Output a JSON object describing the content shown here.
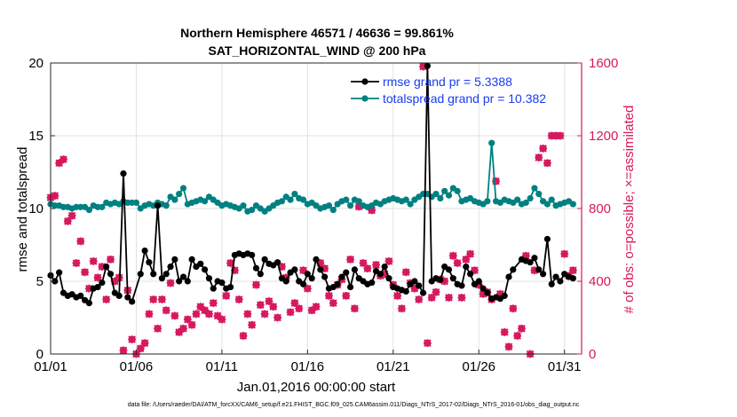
{
  "chart_data": {
    "type": "line",
    "title": "Northern Hemisphere 46571 / 46636 = 99.861%",
    "subtitle": "SAT_HORIZONTAL_WIND @ 200 hPa",
    "xlabel": "Jan.01,2016 00:00:00 start",
    "ylabel_left": "rmse and totalspread",
    "ylabel_right": "# of obs: o=possible; ×=assimilated",
    "footnote": "data file: /Users/raeder/DAI/ATM_forcXX/CAM6_setup/f.e21.FHIST_BGC.f09_025.CAM6assim.011/Diags_NTrS_2017-02/Diags_NTrS_2016-01/obs_diag_output.nc",
    "xlim": [
      1,
      32
    ],
    "ylim_left": [
      0,
      20
    ],
    "ylim_right": [
      0,
      1600
    ],
    "x_ticks": [
      1,
      6,
      11,
      16,
      21,
      26,
      31
    ],
    "x_tick_labels": [
      "01/01",
      "01/06",
      "01/11",
      "01/16",
      "01/21",
      "01/26",
      "01/31"
    ],
    "y_left_ticks": [
      "0",
      "5",
      "10",
      "15",
      "20"
    ],
    "y_right_ticks": [
      "0",
      "400",
      "800",
      "1200",
      "1600"
    ],
    "grid": true,
    "legend_position": "top-right",
    "colors": {
      "rmse": "#000000",
      "totalspread": "#008080",
      "obs": "#d6195e",
      "legend_text": "#1a3cf0",
      "right_axis": "#d6195e"
    },
    "series": [
      {
        "name": "rmse grand pr = 5.3388",
        "axis": "left",
        "x": [
          1.0,
          1.25,
          1.5,
          1.75,
          2.0,
          2.25,
          2.5,
          2.75,
          3.0,
          3.25,
          3.5,
          3.75,
          4.0,
          4.25,
          4.5,
          4.75,
          5.0,
          5.25,
          5.5,
          5.75,
          6.25,
          6.5,
          6.75,
          7.0,
          7.25,
          7.5,
          7.75,
          8.0,
          8.25,
          8.5,
          8.75,
          9.0,
          9.25,
          9.5,
          9.75,
          10.0,
          10.25,
          10.5,
          10.75,
          11.0,
          11.25,
          11.5,
          11.75,
          12.0,
          12.25,
          12.5,
          12.75,
          13.0,
          13.25,
          13.5,
          13.75,
          14.0,
          14.25,
          14.5,
          14.75,
          15.0,
          15.25,
          15.5,
          15.75,
          16.0,
          16.25,
          16.5,
          16.75,
          17.0,
          17.25,
          17.5,
          17.75,
          18.0,
          18.25,
          18.5,
          18.75,
          19.0,
          19.25,
          19.5,
          19.75,
          20.0,
          20.25,
          20.5,
          20.75,
          21.0,
          21.25,
          21.5,
          21.75,
          22.0,
          22.25,
          22.5,
          22.75,
          23.0,
          23.25,
          23.5,
          23.75,
          24.0,
          24.25,
          24.5,
          24.75,
          25.0,
          25.25,
          25.5,
          25.75,
          26.0,
          26.25,
          26.5,
          26.75,
          27.0,
          27.25,
          27.5,
          27.75,
          28.0,
          28.5,
          28.75,
          29.0,
          29.25,
          29.5,
          29.75,
          30.0,
          30.25,
          30.5,
          30.75,
          31.0,
          31.25,
          31.5
        ],
        "y": [
          5.4,
          5.0,
          5.6,
          4.2,
          4.0,
          4.1,
          3.9,
          4.0,
          3.7,
          3.5,
          4.5,
          4.6,
          4.9,
          6.0,
          5.5,
          4.2,
          4.0,
          12.4,
          3.9,
          3.6,
          5.5,
          7.1,
          6.3,
          5.5,
          10.2,
          5.2,
          5.5,
          6.0,
          6.5,
          5.0,
          5.3,
          5.0,
          6.5,
          6.0,
          6.2,
          5.8,
          5.2,
          4.5,
          5.0,
          4.9,
          4.5,
          4.6,
          6.8,
          6.9,
          6.8,
          6.9,
          6.8,
          5.9,
          5.5,
          6.5,
          6.2,
          6.1,
          6.3,
          5.2,
          5.0,
          5.6,
          5.8,
          5.0,
          4.8,
          5.5,
          5.2,
          6.5,
          5.8,
          5.3,
          4.5,
          4.6,
          4.8,
          5.3,
          5.6,
          4.6,
          5.8,
          5.2,
          5.0,
          4.8,
          4.9,
          5.7,
          5.5,
          6.0,
          5.2,
          4.6,
          4.5,
          4.4,
          4.3,
          4.8,
          5.0,
          4.7,
          4.2,
          19.8,
          5.0,
          5.2,
          5.1,
          6.0,
          5.8,
          5.2,
          4.8,
          4.7,
          6.0,
          5.5,
          4.8,
          5.0,
          4.5,
          4.2,
          3.8,
          3.9,
          3.8,
          4.0,
          5.3,
          5.8,
          6.5,
          6.4,
          6.3,
          6.6,
          5.8,
          5.5,
          7.9,
          4.8,
          5.3,
          5.0,
          5.5,
          5.3,
          5.2
        ]
      },
      {
        "name": "totalspread grand pr = 10.382",
        "axis": "left",
        "x": [
          1.0,
          1.25,
          1.5,
          1.75,
          2.0,
          2.25,
          2.5,
          2.75,
          3.0,
          3.25,
          3.5,
          3.75,
          4.0,
          4.25,
          4.5,
          4.75,
          5.0,
          5.25,
          5.5,
          5.75,
          6.0,
          6.25,
          6.5,
          6.75,
          7.0,
          7.25,
          7.5,
          7.75,
          8.0,
          8.25,
          8.5,
          8.75,
          9.0,
          9.25,
          9.5,
          9.75,
          10.0,
          10.25,
          10.5,
          10.75,
          11.0,
          11.25,
          11.5,
          11.75,
          12.0,
          12.25,
          12.5,
          12.75,
          13.0,
          13.25,
          13.5,
          13.75,
          14.0,
          14.25,
          14.5,
          14.75,
          15.0,
          15.25,
          15.5,
          15.75,
          16.0,
          16.25,
          16.5,
          16.75,
          17.0,
          17.25,
          17.5,
          17.75,
          18.0,
          18.25,
          18.5,
          18.75,
          19.0,
          19.25,
          19.5,
          19.75,
          20.0,
          20.25,
          20.5,
          20.75,
          21.0,
          21.25,
          21.5,
          21.75,
          22.0,
          22.25,
          22.5,
          22.75,
          23.0,
          23.25,
          23.5,
          23.75,
          24.0,
          24.25,
          24.5,
          24.75,
          25.0,
          25.25,
          25.5,
          25.75,
          26.0,
          26.25,
          26.5,
          26.75,
          27.0,
          27.25,
          27.5,
          27.75,
          28.0,
          28.25,
          28.5,
          28.75,
          29.0,
          29.25,
          29.5,
          29.75,
          30.0,
          30.25,
          30.5,
          30.75,
          31.0,
          31.25,
          31.5
        ],
        "y": [
          10.3,
          10.2,
          10.2,
          10.1,
          10.1,
          10.0,
          10.1,
          10.1,
          10.1,
          9.9,
          10.2,
          10.1,
          10.1,
          10.4,
          10.3,
          10.4,
          10.3,
          10.5,
          10.4,
          10.4,
          10.4,
          10.0,
          10.2,
          10.3,
          10.2,
          10.4,
          10.3,
          10.2,
          10.8,
          10.6,
          11.0,
          11.4,
          10.3,
          10.4,
          10.5,
          10.6,
          10.5,
          10.8,
          10.6,
          10.4,
          10.2,
          10.3,
          10.2,
          10.1,
          10.0,
          10.2,
          9.8,
          9.9,
          10.2,
          10.0,
          9.8,
          10.0,
          10.2,
          10.4,
          10.5,
          10.8,
          10.6,
          11.0,
          10.7,
          10.6,
          10.3,
          10.4,
          10.2,
          10.0,
          10.1,
          10.2,
          9.9,
          10.3,
          10.5,
          10.6,
          10.2,
          10.6,
          10.5,
          10.2,
          10.1,
          10.2,
          10.4,
          10.3,
          10.5,
          10.6,
          10.7,
          10.6,
          10.5,
          10.6,
          10.3,
          10.6,
          10.8,
          11.0,
          11.0,
          10.8,
          11.0,
          10.7,
          11.2,
          10.9,
          11.4,
          11.2,
          10.5,
          10.6,
          10.7,
          10.5,
          10.4,
          10.3,
          10.5,
          14.5,
          10.5,
          10.4,
          10.6,
          10.5,
          10.4,
          10.6,
          10.3,
          10.4,
          10.7,
          11.4,
          11.0,
          10.5,
          10.3,
          10.6,
          10.2,
          10.3,
          10.4,
          10.5,
          10.3
        ]
      },
      {
        "name": "obs possible",
        "axis": "right",
        "marker": "o",
        "x": [
          1.0,
          1.25,
          1.5,
          1.75,
          2.0,
          2.25,
          2.5,
          2.75,
          3.0,
          3.25,
          3.5,
          3.75,
          4.0,
          4.25,
          4.5,
          4.75,
          5.0,
          5.25,
          5.5,
          5.75,
          6.0,
          6.25,
          6.5,
          6.75,
          7.0,
          7.25,
          7.5,
          7.75,
          8.0,
          8.25,
          8.5,
          8.75,
          9.0,
          9.25,
          9.5,
          9.75,
          10.0,
          10.25,
          10.5,
          10.75,
          11.0,
          11.25,
          11.5,
          11.75,
          12.0,
          12.25,
          12.5,
          12.75,
          13.0,
          13.25,
          13.5,
          13.75,
          14.0,
          14.25,
          14.5,
          14.75,
          15.0,
          15.25,
          15.5,
          15.75,
          16.0,
          16.25,
          16.5,
          16.75,
          17.0,
          17.25,
          17.5,
          17.75,
          18.0,
          18.25,
          18.5,
          18.75,
          19.0,
          19.25,
          19.5,
          19.75,
          20.0,
          20.25,
          20.5,
          20.75,
          21.0,
          21.25,
          21.5,
          21.75,
          22.0,
          22.25,
          22.5,
          22.75,
          23.0,
          23.25,
          23.5,
          23.75,
          24.0,
          24.25,
          24.5,
          24.75,
          25.0,
          25.25,
          25.5,
          25.75,
          26.0,
          26.25,
          26.5,
          26.75,
          27.0,
          27.25,
          27.5,
          27.75,
          28.0,
          28.25,
          28.5,
          28.75,
          29.0,
          29.25,
          29.5,
          29.75,
          30.0,
          30.25,
          30.5,
          30.75,
          31.0,
          31.25,
          31.5
        ],
        "y": [
          860,
          870,
          1050,
          1070,
          730,
          760,
          500,
          620,
          450,
          360,
          510,
          420,
          480,
          300,
          520,
          400,
          420,
          20,
          350,
          80,
          0,
          30,
          60,
          220,
          300,
          140,
          300,
          240,
          390,
          210,
          120,
          140,
          190,
          160,
          220,
          260,
          240,
          220,
          280,
          210,
          190,
          320,
          500,
          460,
          300,
          100,
          220,
          160,
          380,
          270,
          220,
          290,
          260,
          200,
          480,
          420,
          230,
          280,
          250,
          460,
          360,
          240,
          260,
          500,
          470,
          320,
          280,
          380,
          410,
          320,
          520,
          250,
          810,
          500,
          470,
          790,
          490,
          430,
          440,
          510,
          380,
          320,
          250,
          450,
          390,
          360,
          300,
          1580,
          60,
          310,
          340,
          410,
          400,
          310,
          540,
          500,
          310,
          520,
          550,
          460,
          380,
          330,
          340,
          300,
          950,
          330,
          120,
          40,
          250,
          100,
          140,
          540,
          0,
          460,
          1080,
          1130,
          1050,
          1200,
          1200,
          1200,
          550,
          430,
          460
        ]
      },
      {
        "name": "obs assimilated",
        "axis": "right",
        "marker": "x",
        "x": [
          1.0,
          1.25,
          1.5,
          1.75,
          2.0,
          2.25,
          2.5,
          2.75,
          3.0,
          3.25,
          3.5,
          3.75,
          4.0,
          4.25,
          4.5,
          4.75,
          5.0,
          5.25,
          5.5,
          5.75,
          6.0,
          6.25,
          6.5,
          6.75,
          7.0,
          7.25,
          7.5,
          7.75,
          8.0,
          8.25,
          8.5,
          8.75,
          9.0,
          9.25,
          9.5,
          9.75,
          10.0,
          10.25,
          10.5,
          10.75,
          11.0,
          11.25,
          11.5,
          11.75,
          12.0,
          12.25,
          12.5,
          12.75,
          13.0,
          13.25,
          13.5,
          13.75,
          14.0,
          14.25,
          14.5,
          14.75,
          15.0,
          15.25,
          15.5,
          15.75,
          16.0,
          16.25,
          16.5,
          16.75,
          17.0,
          17.25,
          17.5,
          17.75,
          18.0,
          18.25,
          18.5,
          18.75,
          19.0,
          19.25,
          19.5,
          19.75,
          20.0,
          20.25,
          20.5,
          20.75,
          21.0,
          21.25,
          21.5,
          21.75,
          22.0,
          22.25,
          22.5,
          22.75,
          23.0,
          23.25,
          23.5,
          23.75,
          24.0,
          24.25,
          24.5,
          24.75,
          25.0,
          25.25,
          25.5,
          25.75,
          26.0,
          26.25,
          26.5,
          26.75,
          27.0,
          27.25,
          27.5,
          27.75,
          28.0,
          28.25,
          28.5,
          28.75,
          29.0,
          29.25,
          29.5,
          29.75,
          30.0,
          30.25,
          30.5,
          30.75,
          31.0,
          31.25,
          31.5
        ],
        "y": [
          860,
          870,
          1050,
          1070,
          730,
          760,
          500,
          620,
          450,
          360,
          510,
          420,
          480,
          300,
          520,
          400,
          420,
          20,
          350,
          80,
          0,
          30,
          60,
          220,
          300,
          140,
          300,
          240,
          390,
          210,
          120,
          140,
          190,
          160,
          220,
          260,
          240,
          220,
          280,
          210,
          190,
          320,
          500,
          460,
          300,
          100,
          220,
          160,
          380,
          270,
          220,
          290,
          260,
          200,
          480,
          420,
          230,
          280,
          250,
          460,
          360,
          240,
          260,
          500,
          470,
          320,
          280,
          380,
          410,
          320,
          520,
          250,
          810,
          500,
          470,
          790,
          490,
          430,
          440,
          510,
          380,
          320,
          250,
          450,
          390,
          360,
          300,
          1580,
          60,
          310,
          340,
          410,
          400,
          310,
          540,
          500,
          310,
          520,
          550,
          460,
          380,
          330,
          340,
          300,
          950,
          330,
          120,
          40,
          250,
          100,
          140,
          540,
          0,
          460,
          1080,
          1130,
          1050,
          1200,
          1200,
          1200,
          550,
          430,
          460
        ]
      }
    ]
  }
}
